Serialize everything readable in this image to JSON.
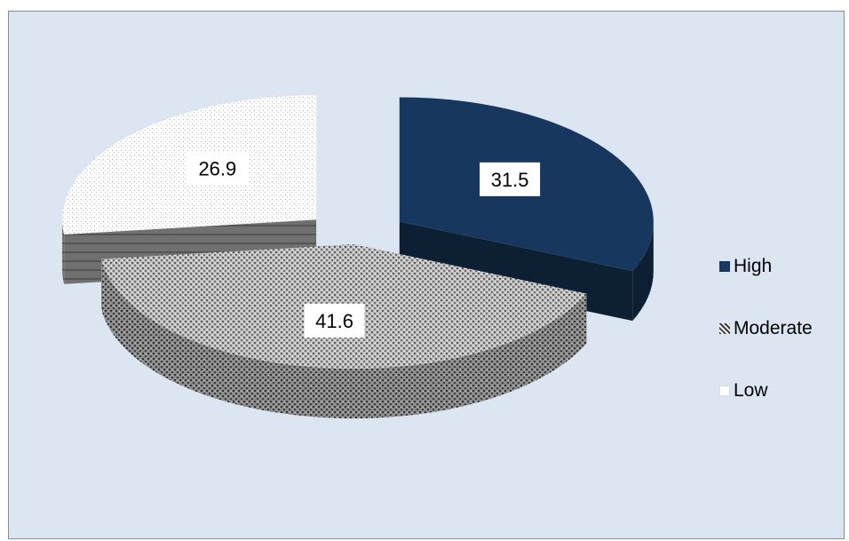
{
  "chart_data": {
    "type": "pie",
    "style": "3d-exploded",
    "categories": [
      "High",
      "Moderate",
      "Low"
    ],
    "values": [
      31.5,
      41.6,
      26.9
    ],
    "data_labels": [
      "31.5",
      "41.6",
      "26.9"
    ],
    "colors": [
      "#17375e",
      "#a6a6a6",
      "#ffffff"
    ],
    "legend": {
      "placement": "right",
      "entries": [
        "High",
        "Moderate",
        "Low"
      ]
    }
  },
  "legend_swatch_icons": [
    "solid-square-icon",
    "dotted-pattern-square-icon",
    "light-dot-square-icon"
  ]
}
